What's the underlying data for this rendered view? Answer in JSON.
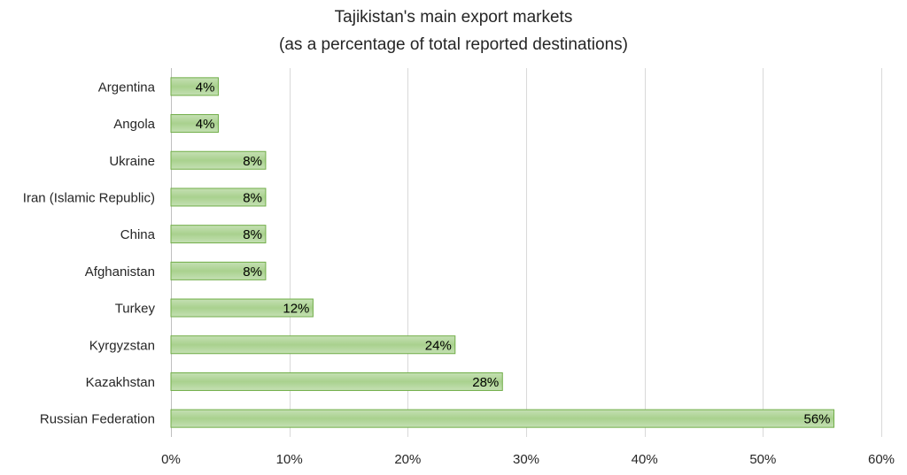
{
  "chart_data": {
    "type": "bar",
    "orientation": "horizontal",
    "title": "Tajikistan's main export markets",
    "subtitle": "(as a percentage of total reported destinations)",
    "categories": [
      "Argentina",
      "Angola",
      "Ukraine",
      "Iran (Islamic Republic)",
      "China",
      "Afghanistan",
      "Turkey",
      "Kyrgyzstan",
      "Kazakhstan",
      "Russian Federation"
    ],
    "values": [
      4,
      4,
      8,
      8,
      8,
      8,
      12,
      24,
      28,
      56
    ],
    "data_labels": [
      "4%",
      "4%",
      "8%",
      "8%",
      "8%",
      "8%",
      "12%",
      "24%",
      "28%",
      "56%"
    ],
    "xlim": [
      0,
      60
    ],
    "xticks": [
      0,
      10,
      20,
      30,
      40,
      50,
      60
    ],
    "xtick_labels": [
      "0%",
      "10%",
      "20%",
      "30%",
      "40%",
      "50%",
      "60%"
    ],
    "xlabel": "",
    "ylabel": "",
    "grid": "vertical",
    "legend": "none",
    "bar_fill": "#a9d18e",
    "bar_stroke": "#70ad47"
  }
}
